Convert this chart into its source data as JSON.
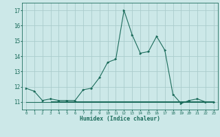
{
  "xlabel": "Humidex (Indice chaleur)",
  "background_color": "#cce8e8",
  "grid_color": "#aacccc",
  "line_color": "#1a6b5a",
  "xlim": [
    -0.5,
    23.5
  ],
  "ylim": [
    10.5,
    17.5
  ],
  "yticks": [
    11,
    12,
    13,
    14,
    15,
    16,
    17
  ],
  "xticks": [
    0,
    1,
    2,
    3,
    4,
    5,
    6,
    7,
    8,
    9,
    10,
    11,
    12,
    13,
    14,
    15,
    16,
    17,
    18,
    19,
    20,
    21,
    22,
    23
  ],
  "series1_x": [
    0,
    1,
    2,
    3,
    4,
    5,
    6,
    7,
    8,
    9,
    10,
    11,
    12,
    13,
    14,
    15,
    16,
    17,
    18,
    19,
    20,
    21,
    22,
    23
  ],
  "series1_y": [
    11.9,
    11.7,
    11.1,
    11.2,
    11.1,
    11.1,
    11.1,
    11.8,
    11.9,
    12.6,
    13.6,
    13.8,
    17.0,
    15.4,
    14.2,
    14.3,
    15.3,
    14.4,
    11.5,
    10.9,
    11.1,
    11.2,
    11.0,
    11.0
  ],
  "series2_x": [
    0,
    1,
    2,
    3,
    4,
    5,
    6,
    7,
    8,
    9,
    10,
    11,
    12,
    13,
    14,
    15,
    16,
    17,
    18,
    19,
    20,
    21,
    22,
    23
  ],
  "series2_y": [
    11.0,
    11.0,
    11.0,
    11.0,
    11.0,
    11.0,
    11.0,
    11.0,
    11.0,
    11.0,
    11.0,
    11.0,
    11.0,
    11.0,
    11.0,
    11.0,
    11.0,
    11.0,
    11.0,
    11.0,
    11.0,
    11.0,
    11.0,
    11.0
  ],
  "series3_x": [
    3,
    4,
    5,
    6,
    7,
    8,
    9,
    10,
    11,
    12,
    13,
    14,
    15,
    16,
    17,
    18,
    19,
    20,
    21,
    22,
    23
  ],
  "series3_y": [
    11.05,
    11.05,
    11.05,
    11.05,
    11.05,
    11.05,
    11.05,
    11.05,
    11.05,
    11.05,
    11.05,
    11.05,
    11.05,
    11.05,
    11.05,
    11.05,
    11.05,
    11.05,
    11.05,
    11.05,
    11.05
  ]
}
